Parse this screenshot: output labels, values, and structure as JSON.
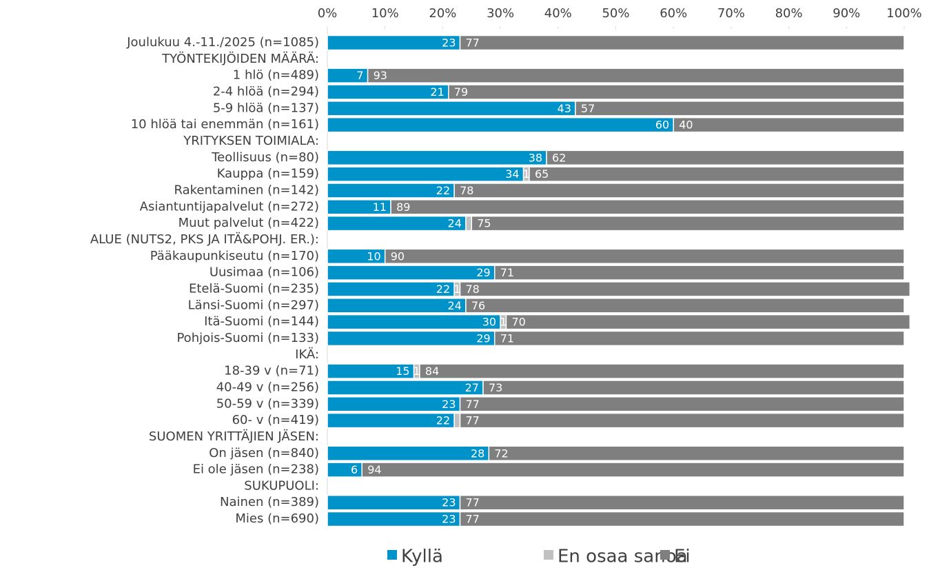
{
  "chart_data": {
    "type": "stacked-bar-horizontal",
    "categories": [
      "Joulukuu 4.-11./2025 (n=1085)",
      "TYÖNTEKIJÖIDEN MÄÄRÄ:",
      "1 hlö (n=489)",
      "2-4 hlöä (n=294)",
      "5-9 hlöä (n=137)",
      "10 hlöä tai enemmän (n=161)",
      "YRITYKSEN TOIMIALA:",
      "Teollisuus (n=80)",
      "Kauppa (n=159)",
      "Rakentaminen (n=142)",
      "Asiantuntijapalvelut (n=272)",
      "Muut palvelut (n=422)",
      "ALUE (NUTS2, PKS JA ITÄ&POHJ. ER.):",
      "Pääkaupunkiseutu (n=170)",
      "Uusimaa (n=106)",
      "Etelä-Suomi (n=235)",
      "Länsi-Suomi (n=297)",
      "Itä-Suomi (n=144)",
      "Pohjois-Suomi (n=133)",
      "IKÄ:",
      "18-39 v (n=71)",
      "40-49 v (n=256)",
      "50-59 v (n=339)",
      "60- v (n=419)",
      "SUOMEN YRITTÄJIEN JÄSEN:",
      "On jäsen (n=840)",
      "Ei ole jäsen (n=238)",
      "SUKUPUOLI:",
      "Nainen (n=389)",
      "Mies (n=690)"
    ],
    "series": [
      {
        "name": "Kyllä",
        "color": "#0093c9",
        "values": [
          23,
          null,
          7,
          21,
          43,
          60,
          null,
          38,
          34,
          22,
          11,
          24,
          null,
          10,
          29,
          22,
          24,
          30,
          29,
          null,
          15,
          27,
          23,
          22,
          null,
          28,
          6,
          null,
          23,
          23
        ]
      },
      {
        "name": "En osaa sanoa",
        "color": "#c0c0c0",
        "values": [
          0,
          null,
          0,
          0,
          0,
          0,
          null,
          0,
          1,
          0,
          0,
          1,
          null,
          0,
          0,
          1,
          0,
          1,
          0,
          null,
          1,
          0,
          0,
          1,
          null,
          0,
          0,
          null,
          0,
          0
        ],
        "value_labels": [
          null,
          null,
          null,
          null,
          null,
          null,
          null,
          null,
          "1",
          null,
          null,
          null,
          null,
          null,
          null,
          "1",
          null,
          "1",
          null,
          null,
          "1",
          null,
          null,
          null,
          null,
          null,
          null,
          null,
          null,
          null
        ]
      },
      {
        "name": "Ei",
        "color": "#7f7f7f",
        "values": [
          77,
          null,
          93,
          79,
          57,
          40,
          null,
          62,
          65,
          78,
          89,
          75,
          null,
          90,
          71,
          78,
          76,
          70,
          71,
          null,
          84,
          73,
          77,
          77,
          null,
          72,
          94,
          null,
          77,
          77
        ]
      }
    ],
    "xlim": [
      0,
      100
    ],
    "xticks": [
      {
        "value": 0,
        "label": "0%"
      },
      {
        "value": 10,
        "label": "10%"
      },
      {
        "value": 20,
        "label": "20%"
      },
      {
        "value": 30,
        "label": "30%"
      },
      {
        "value": 40,
        "label": "40%"
      },
      {
        "value": 50,
        "label": "50%"
      },
      {
        "value": 60,
        "label": "60%"
      },
      {
        "value": 70,
        "label": "70%"
      },
      {
        "value": 80,
        "label": "80%"
      },
      {
        "value": 90,
        "label": "90%"
      },
      {
        "value": 100,
        "label": "100%"
      }
    ],
    "legend": "bottom"
  }
}
